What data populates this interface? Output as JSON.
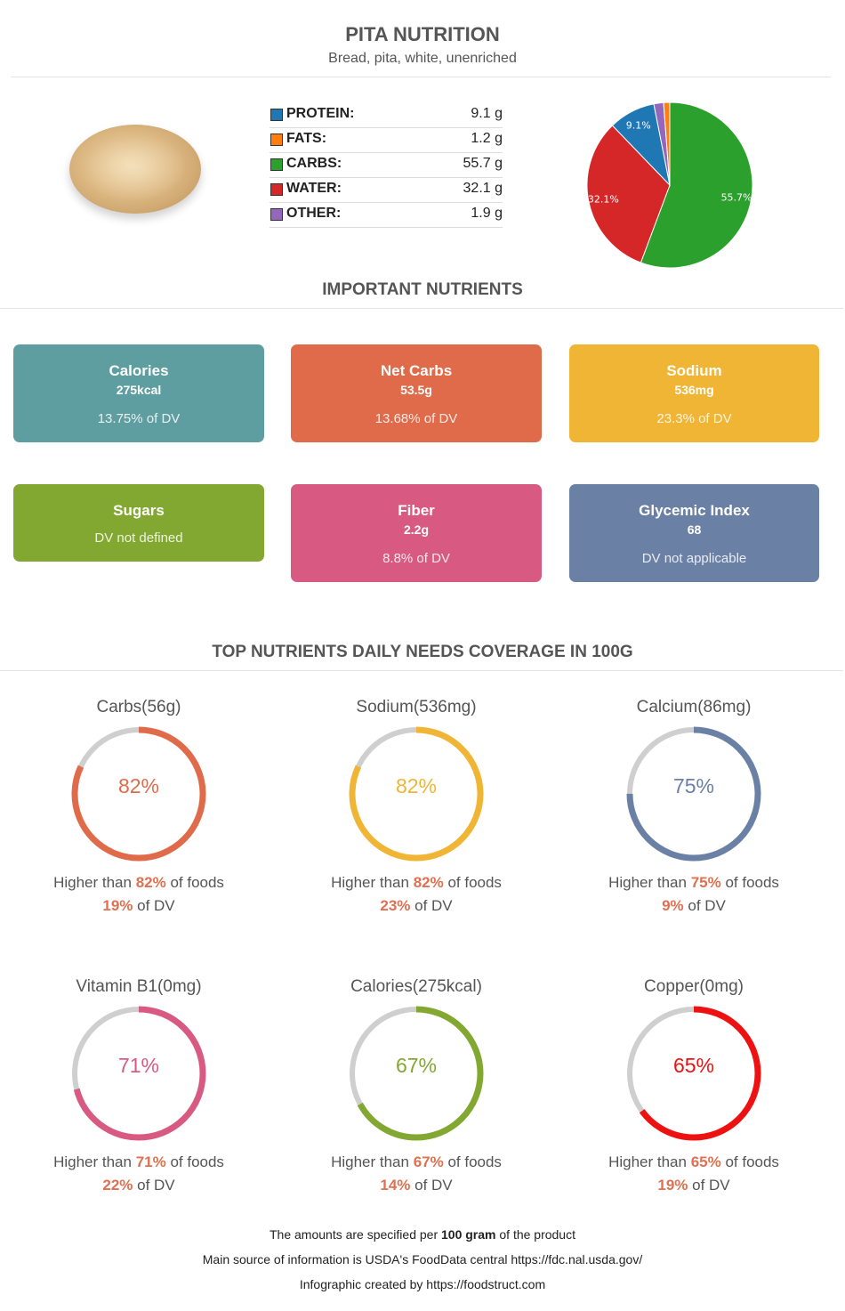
{
  "header": {
    "title": "PITA NUTRITION",
    "subtitle": "Bread, pita, white, unenriched"
  },
  "macros": [
    {
      "label": "PROTEIN:",
      "value": "9.1 g",
      "color": "#1f77b4"
    },
    {
      "label": "FATS:",
      "value": "1.2 g",
      "color": "#ff7f0e"
    },
    {
      "label": "CARBS:",
      "value": "55.7 g",
      "color": "#2ca02c"
    },
    {
      "label": "WATER:",
      "value": "32.1 g",
      "color": "#d62728"
    },
    {
      "label": "OTHER:",
      "value": "1.9 g",
      "color": "#9467bd"
    }
  ],
  "chart_data": {
    "type": "pie",
    "slices": [
      {
        "name": "CARBS",
        "value": 55.7,
        "label": "55.7%",
        "color": "#2ca02c"
      },
      {
        "name": "WATER",
        "value": 32.1,
        "label": "32.1%",
        "color": "#d62728"
      },
      {
        "name": "PROTEIN",
        "value": 9.1,
        "label": "9.1%",
        "color": "#1f77b4"
      },
      {
        "name": "OTHER",
        "value": 1.9,
        "label": "",
        "color": "#9467bd"
      },
      {
        "name": "FATS",
        "value": 1.2,
        "label": "",
        "color": "#ff7f0e"
      }
    ]
  },
  "important": {
    "title": "IMPORTANT NUTRIENTS",
    "cards": [
      {
        "name": "Calories",
        "value": "275kcal",
        "dv": "13.75% of DV",
        "color": "#5f9ea0"
      },
      {
        "name": "Net Carbs",
        "value": "53.5g",
        "dv": "13.68% of DV",
        "color": "#e06b4a"
      },
      {
        "name": "Sodium",
        "value": "536mg",
        "dv": "23.3% of DV",
        "color": "#f0b535"
      },
      {
        "name": "Sugars",
        "value": "",
        "dv": "DV not defined",
        "color": "#82a832"
      },
      {
        "name": "Fiber",
        "value": "2.2g",
        "dv": "8.8% of DV",
        "color": "#d85a82"
      },
      {
        "name": "Glycemic Index",
        "value": "68",
        "dv": "DV not applicable",
        "color": "#6a80a4"
      }
    ]
  },
  "coverage": {
    "title": "TOP NUTRIENTS DAILY NEEDS COVERAGE IN 100G",
    "higher_prefix": "Higher than ",
    "higher_suffix": " of foods",
    "dv_suffix": " of DV",
    "items": [
      {
        "title": "Carbs(56g)",
        "pct": 82,
        "pct_label": "82%",
        "dv": "19%",
        "color": "#e06b4a"
      },
      {
        "title": "Sodium(536mg)",
        "pct": 82,
        "pct_label": "82%",
        "dv": "23%",
        "color": "#f0b535"
      },
      {
        "title": "Calcium(86mg)",
        "pct": 75,
        "pct_label": "75%",
        "dv": "9%",
        "color": "#6a80a4"
      },
      {
        "title": "Vitamin B1(0mg)",
        "pct": 71,
        "pct_label": "71%",
        "dv": "22%",
        "color": "#d85a82"
      },
      {
        "title": "Calories(275kcal)",
        "pct": 67,
        "pct_label": "67%",
        "dv": "14%",
        "color": "#82a832"
      },
      {
        "title": "Copper(0mg)",
        "pct": 65,
        "pct_label": "65%",
        "dv": "19%",
        "color": "#ee1111"
      }
    ]
  },
  "footer": {
    "line1_pre": "The amounts are specified per ",
    "line1_bold": "100 gram",
    "line1_post": " of the product",
    "line2": "Main source of information is USDA's FoodData central https://fdc.nal.usda.gov/",
    "line3": "Infographic created by https://foodstruct.com"
  }
}
